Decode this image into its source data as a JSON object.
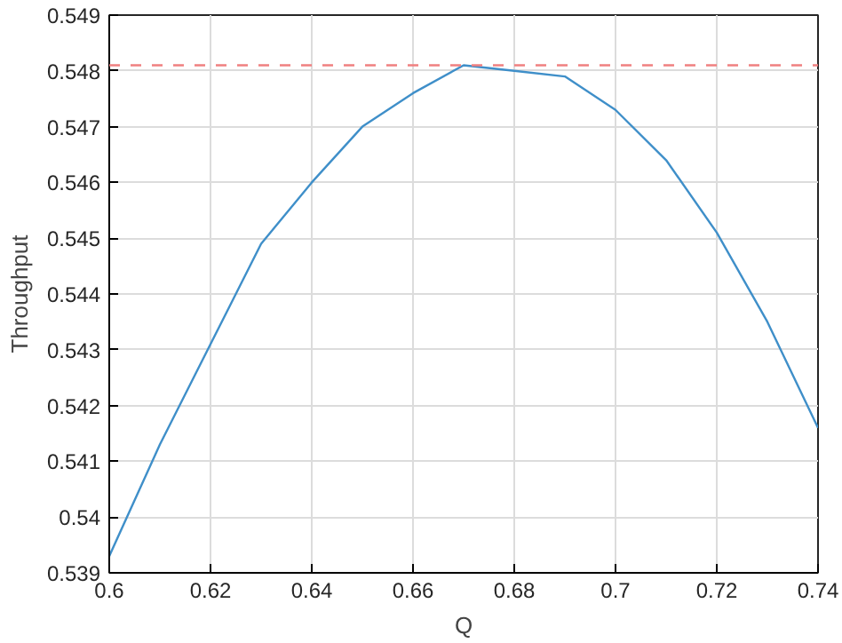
{
  "chart_data": {
    "type": "line",
    "xlabel": "Q",
    "ylabel": "Throughput",
    "x": [
      0.6,
      0.61,
      0.62,
      0.63,
      0.64,
      0.65,
      0.66,
      0.67,
      0.68,
      0.69,
      0.7,
      0.71,
      0.72,
      0.73,
      0.74
    ],
    "series": [
      {
        "color": "#3f8fc9",
        "values": [
          0.5393,
          0.5413,
          0.5431,
          0.5449,
          0.546,
          0.547,
          0.5476,
          0.5481,
          0.548,
          0.5479,
          0.5473,
          0.5464,
          0.5451,
          0.5435,
          0.5416
        ]
      }
    ],
    "xlim": [
      0.6,
      0.74
    ],
    "ylim": [
      0.539,
      0.549
    ],
    "xticks": [
      0.6,
      0.62,
      0.64,
      0.66,
      0.68,
      0.7,
      0.72,
      0.74
    ],
    "yticks": [
      0.539,
      0.54,
      0.541,
      0.542,
      0.543,
      0.544,
      0.545,
      0.546,
      0.547,
      0.548,
      0.549
    ],
    "ref_lines": [
      {
        "axis": "y",
        "value": 0.5481,
        "color": "#f08080",
        "line_style": "dashed"
      }
    ],
    "grid": true,
    "line_style": "solid",
    "marker": "none"
  }
}
